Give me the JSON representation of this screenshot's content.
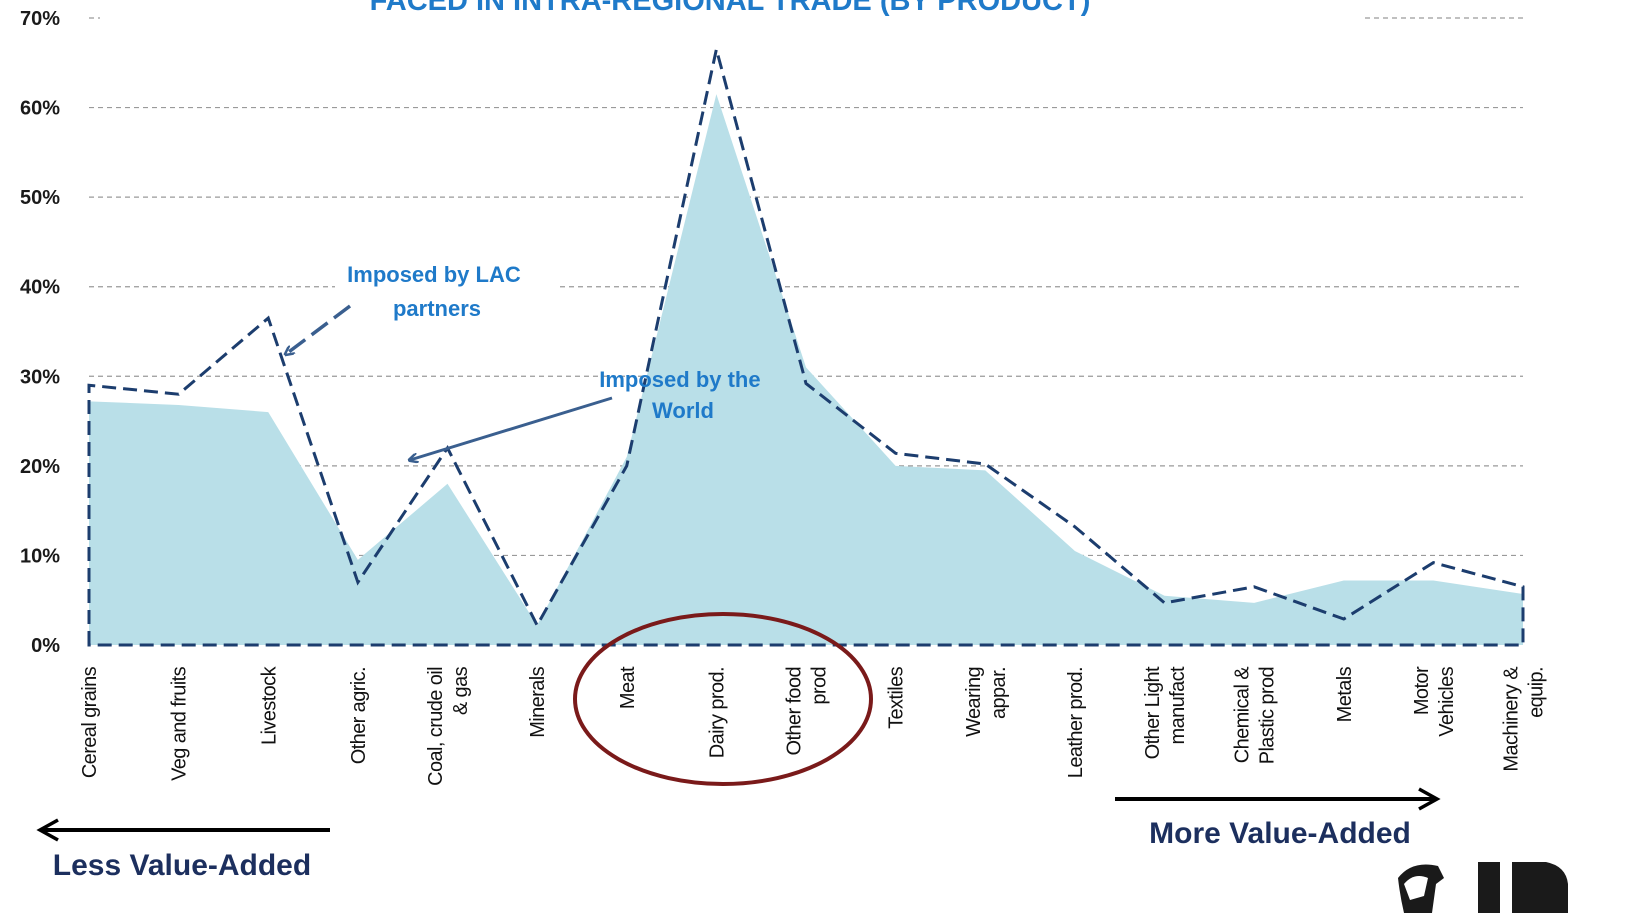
{
  "chart_data": {
    "type": "area",
    "title": "FACED IN INTRA-REGIONAL TRADE (BY PRODUCT)",
    "xlabel": "",
    "ylabel": "",
    "ylim": [
      0,
      70
    ],
    "yticks": [
      "0%",
      "10%",
      "20%",
      "30%",
      "40%",
      "50%",
      "60%",
      "70%"
    ],
    "grid": true,
    "categories": [
      [
        "Cereal grains"
      ],
      [
        "Veg and fruits"
      ],
      [
        "Livestock"
      ],
      [
        "Other agric."
      ],
      [
        "Coal, crude oil",
        "& gas"
      ],
      [
        "Minerals"
      ],
      [
        "Meat"
      ],
      [
        "Dairy prod."
      ],
      [
        "Other food",
        "prod"
      ],
      [
        "Textiles"
      ],
      [
        "Wearing",
        "appar."
      ],
      [
        "Leather prod."
      ],
      [
        "Other Light",
        "manufact"
      ],
      [
        "Chemical &",
        "Plastic prod"
      ],
      [
        "Metals"
      ],
      [
        "Motor",
        "Vehicles"
      ],
      [
        "Machinery &",
        "equip."
      ]
    ],
    "series": [
      {
        "style": "area",
        "color": "#b9dfe8",
        "values": [
          27.2,
          26.8,
          26,
          9.5,
          18,
          2.2,
          21,
          61.5,
          31,
          20,
          19.5,
          10.5,
          5.5,
          4.7,
          7.2,
          7.2,
          5.7
        ]
      },
      {
        "style": "dashed-line",
        "color": "#1c3d6e",
        "values": [
          29,
          28,
          36.5,
          7,
          22,
          2.2,
          20,
          66.5,
          29.2,
          21.4,
          20.2,
          13.2,
          4.7,
          6.5,
          2.9,
          9.2,
          6.5
        ]
      }
    ],
    "annotations": [
      {
        "lines": [
          "Imposed by LAC",
          "partners"
        ]
      },
      {
        "lines": [
          "Imposed by the",
          "World"
        ]
      }
    ],
    "value_added": {
      "less": "Less Value-Added",
      "more": "More Value-Added"
    }
  }
}
